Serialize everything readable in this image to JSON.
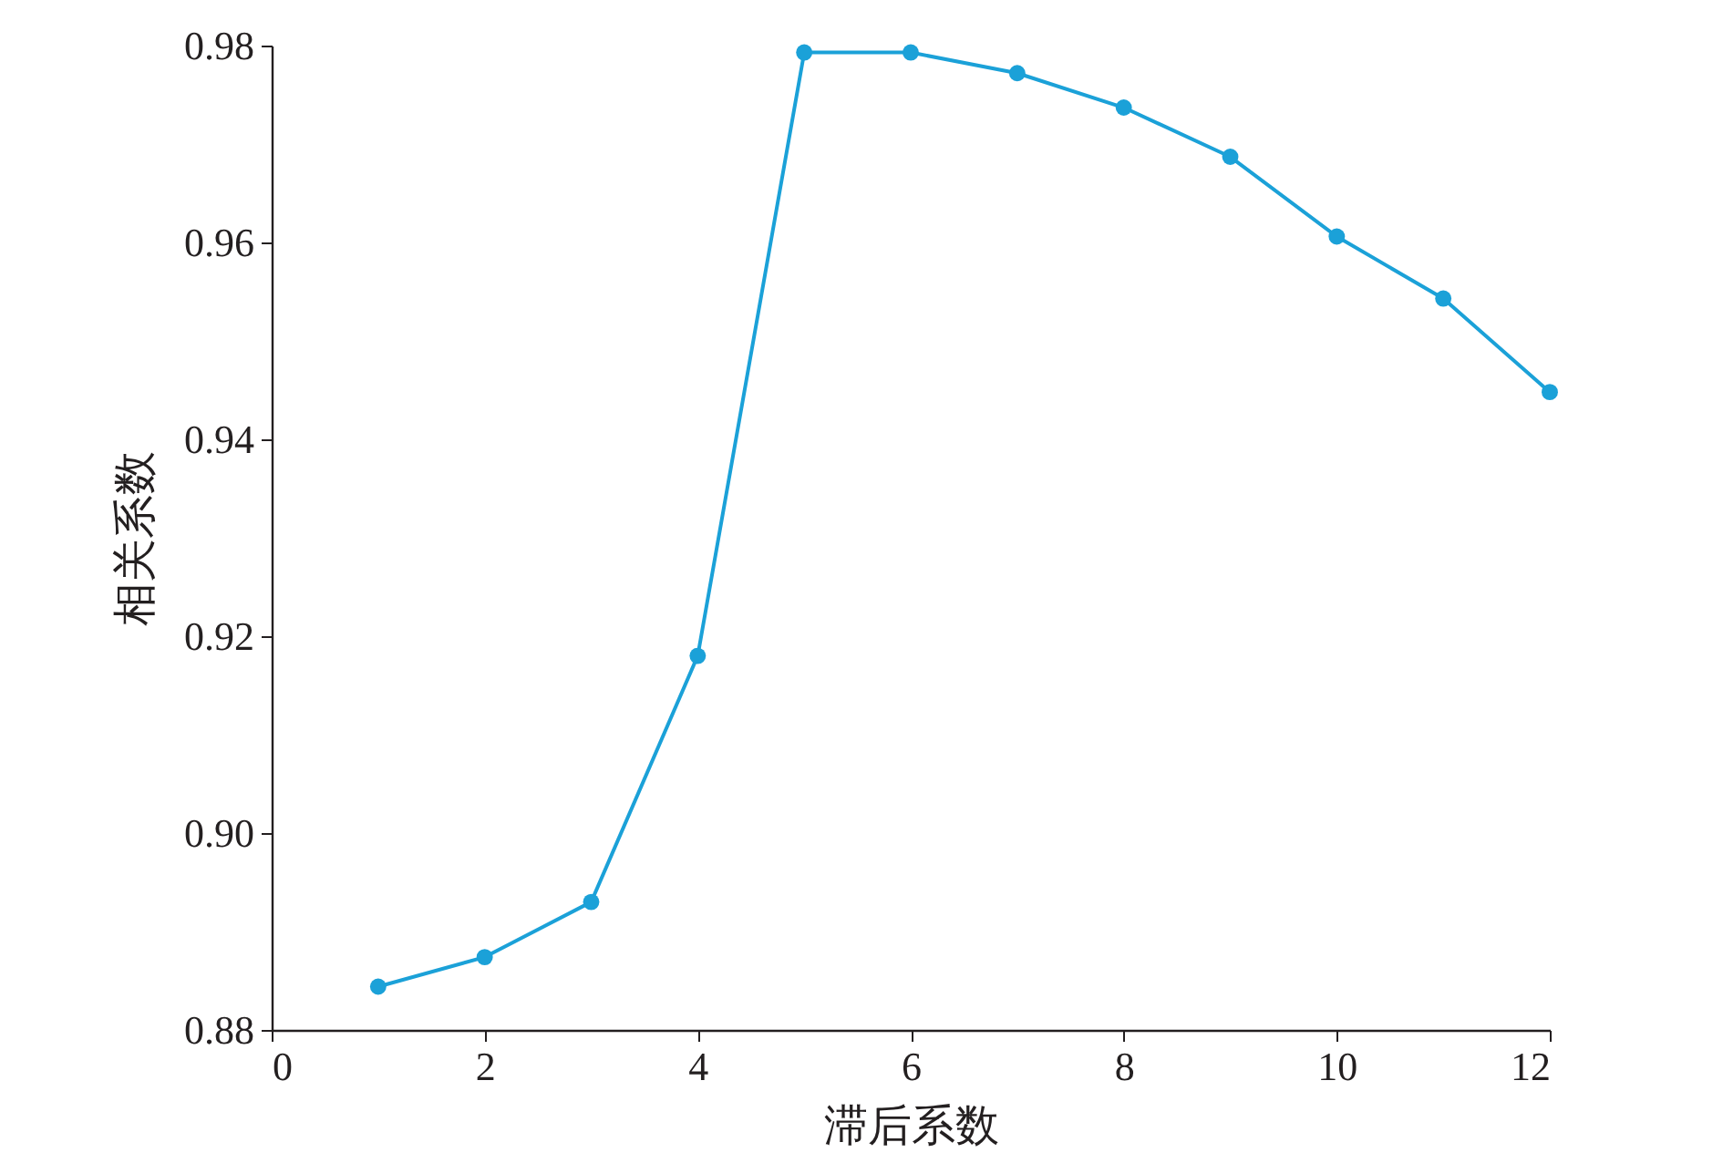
{
  "chart_data": {
    "type": "line",
    "xlabel": "滞后系数",
    "ylabel": "相关系数",
    "x": [
      1,
      2,
      3,
      4,
      5,
      6,
      7,
      8,
      9,
      10,
      11,
      12
    ],
    "series": [
      {
        "color": "#1ba1d8",
        "values": [
          0.8844,
          0.8874,
          0.893,
          0.918,
          0.9793,
          0.9793,
          0.9772,
          0.9737,
          0.9687,
          0.9606,
          0.9543,
          0.9448
        ]
      }
    ],
    "xlim": [
      0,
      12
    ],
    "xticks": [
      0,
      2,
      4,
      6,
      8,
      10,
      12
    ],
    "ylim": [
      0.88,
      0.98
    ],
    "yticks": [
      0.88,
      {
        "value": 0.9,
        "label": "0.90"
      },
      0.92,
      0.94,
      0.96,
      0.98
    ],
    "grid": false,
    "marker": "circle",
    "line_style": "solid"
  }
}
